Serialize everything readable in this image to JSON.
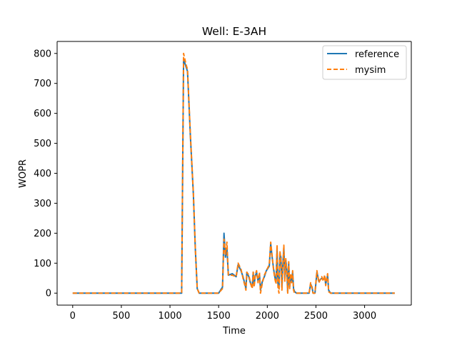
{
  "chart_data": {
    "type": "line",
    "title": "Well: E-3AH",
    "xlabel": "Time",
    "ylabel": "WOPR",
    "xlim": [
      -160,
      3480
    ],
    "ylim": [
      -40,
      840
    ],
    "xticks": [
      0,
      500,
      1000,
      1500,
      2000,
      2500,
      3000
    ],
    "yticks": [
      0,
      100,
      200,
      300,
      400,
      500,
      600,
      700,
      800
    ],
    "grid": false,
    "legend_position": "top-right",
    "series": [
      {
        "name": "reference",
        "color": "#1f77b4",
        "style": "solid",
        "points": [
          [
            0,
            0
          ],
          [
            200,
            0
          ],
          [
            400,
            0
          ],
          [
            600,
            0
          ],
          [
            800,
            0
          ],
          [
            1000,
            0
          ],
          [
            1120,
            0
          ],
          [
            1140,
            780
          ],
          [
            1160,
            760
          ],
          [
            1180,
            740
          ],
          [
            1210,
            520
          ],
          [
            1240,
            330
          ],
          [
            1260,
            150
          ],
          [
            1280,
            15
          ],
          [
            1300,
            0
          ],
          [
            1400,
            0
          ],
          [
            1500,
            0
          ],
          [
            1540,
            20
          ],
          [
            1555,
            200
          ],
          [
            1570,
            120
          ],
          [
            1585,
            150
          ],
          [
            1600,
            60
          ],
          [
            1640,
            65
          ],
          [
            1680,
            55
          ],
          [
            1700,
            95
          ],
          [
            1730,
            75
          ],
          [
            1750,
            55
          ],
          [
            1770,
            30
          ],
          [
            1780,
            15
          ],
          [
            1790,
            70
          ],
          [
            1810,
            55
          ],
          [
            1830,
            30
          ],
          [
            1845,
            20
          ],
          [
            1855,
            70
          ],
          [
            1865,
            25
          ],
          [
            1875,
            55
          ],
          [
            1890,
            70
          ],
          [
            1905,
            40
          ],
          [
            1920,
            65
          ],
          [
            1930,
            10
          ],
          [
            1950,
            40
          ],
          [
            1970,
            55
          ],
          [
            1990,
            75
          ],
          [
            2020,
            90
          ],
          [
            2035,
            165
          ],
          [
            2050,
            120
          ],
          [
            2065,
            80
          ],
          [
            2080,
            50
          ],
          [
            2090,
            40
          ],
          [
            2100,
            145
          ],
          [
            2110,
            30
          ],
          [
            2120,
            15
          ],
          [
            2130,
            130
          ],
          [
            2140,
            120
          ],
          [
            2150,
            20
          ],
          [
            2160,
            95
          ],
          [
            2170,
            150
          ],
          [
            2180,
            50
          ],
          [
            2190,
            110
          ],
          [
            2200,
            80
          ],
          [
            2210,
            5
          ],
          [
            2220,
            100
          ],
          [
            2230,
            20
          ],
          [
            2240,
            60
          ],
          [
            2250,
            40
          ],
          [
            2260,
            70
          ],
          [
            2270,
            15
          ],
          [
            2280,
            5
          ],
          [
            2300,
            0
          ],
          [
            2350,
            0
          ],
          [
            2400,
            0
          ],
          [
            2430,
            0
          ],
          [
            2445,
            30
          ],
          [
            2460,
            20
          ],
          [
            2470,
            0
          ],
          [
            2490,
            0
          ],
          [
            2510,
            70
          ],
          [
            2530,
            40
          ],
          [
            2560,
            50
          ],
          [
            2575,
            45
          ],
          [
            2590,
            55
          ],
          [
            2600,
            30
          ],
          [
            2610,
            45
          ],
          [
            2620,
            60
          ],
          [
            2630,
            10
          ],
          [
            2650,
            0
          ],
          [
            2800,
            0
          ],
          [
            3000,
            0
          ],
          [
            3200,
            0
          ],
          [
            3310,
            0
          ]
        ]
      },
      {
        "name": "mysim",
        "color": "#ff7f0e",
        "style": "dashed",
        "points": [
          [
            0,
            0
          ],
          [
            200,
            0
          ],
          [
            400,
            0
          ],
          [
            600,
            0
          ],
          [
            800,
            0
          ],
          [
            1000,
            0
          ],
          [
            1120,
            0
          ],
          [
            1140,
            800
          ],
          [
            1160,
            770
          ],
          [
            1180,
            745
          ],
          [
            1210,
            525
          ],
          [
            1240,
            335
          ],
          [
            1260,
            150
          ],
          [
            1280,
            15
          ],
          [
            1300,
            0
          ],
          [
            1400,
            0
          ],
          [
            1500,
            0
          ],
          [
            1540,
            15
          ],
          [
            1555,
            180
          ],
          [
            1570,
            130
          ],
          [
            1585,
            170
          ],
          [
            1600,
            60
          ],
          [
            1640,
            60
          ],
          [
            1680,
            55
          ],
          [
            1700,
            100
          ],
          [
            1730,
            80
          ],
          [
            1750,
            50
          ],
          [
            1770,
            25
          ],
          [
            1780,
            10
          ],
          [
            1790,
            70
          ],
          [
            1810,
            60
          ],
          [
            1830,
            30
          ],
          [
            1845,
            15
          ],
          [
            1855,
            70
          ],
          [
            1865,
            20
          ],
          [
            1875,
            60
          ],
          [
            1890,
            75
          ],
          [
            1905,
            35
          ],
          [
            1920,
            70
          ],
          [
            1930,
            0
          ],
          [
            1950,
            35
          ],
          [
            1970,
            60
          ],
          [
            1990,
            75
          ],
          [
            2020,
            95
          ],
          [
            2035,
            170
          ],
          [
            2050,
            125
          ],
          [
            2065,
            75
          ],
          [
            2080,
            45
          ],
          [
            2090,
            30
          ],
          [
            2100,
            160
          ],
          [
            2110,
            20
          ],
          [
            2120,
            0
          ],
          [
            2130,
            140
          ],
          [
            2140,
            110
          ],
          [
            2150,
            10
          ],
          [
            2160,
            90
          ],
          [
            2170,
            160
          ],
          [
            2180,
            40
          ],
          [
            2190,
            115
          ],
          [
            2200,
            70
          ],
          [
            2210,
            0
          ],
          [
            2220,
            105
          ],
          [
            2230,
            15
          ],
          [
            2240,
            65
          ],
          [
            2250,
            35
          ],
          [
            2260,
            75
          ],
          [
            2270,
            10
          ],
          [
            2280,
            0
          ],
          [
            2300,
            0
          ],
          [
            2350,
            0
          ],
          [
            2400,
            0
          ],
          [
            2430,
            0
          ],
          [
            2445,
            35
          ],
          [
            2460,
            15
          ],
          [
            2470,
            0
          ],
          [
            2490,
            0
          ],
          [
            2510,
            75
          ],
          [
            2530,
            35
          ],
          [
            2560,
            55
          ],
          [
            2575,
            40
          ],
          [
            2590,
            60
          ],
          [
            2600,
            25
          ],
          [
            2610,
            50
          ],
          [
            2620,
            65
          ],
          [
            2630,
            5
          ],
          [
            2650,
            0
          ],
          [
            2800,
            0
          ],
          [
            3000,
            0
          ],
          [
            3200,
            0
          ],
          [
            3310,
            0
          ]
        ]
      }
    ]
  }
}
